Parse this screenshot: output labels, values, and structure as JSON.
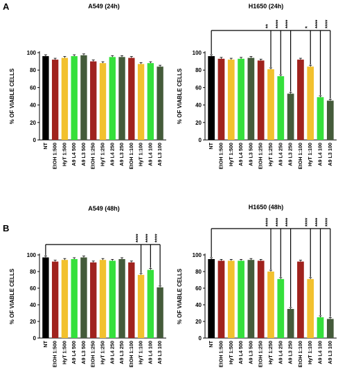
{
  "panel_labels": [
    "A",
    "B"
  ],
  "colors": {
    "NT": "#000000",
    "EtOH": "#a0231e",
    "HyT": "#f2c12e",
    "A9 L4": "#35e03c",
    "A9 L3": "#445b3a"
  },
  "chart_data": [
    {
      "type": "bar",
      "title": "A549 (24h)",
      "ylabel": "% OF VIABLE CELLS",
      "ylim": [
        0,
        100
      ],
      "yticks": [
        0,
        20,
        40,
        60,
        80,
        100
      ],
      "categories": [
        "NT",
        "EtOH 1:500",
        "HyT 1:500",
        "A9 L4 500",
        "A9 L3 500",
        "EtOH 1:250",
        "HyT 1:250",
        "A9 L4 250",
        "A9 L3 250",
        "EtOH 1:100",
        "HyT 1:100",
        "A9 L4 100",
        "A9 L3 100"
      ],
      "values": [
        96,
        92,
        94,
        96,
        97,
        90,
        88,
        95,
        95,
        94,
        87,
        88,
        84
      ],
      "significance": []
    },
    {
      "type": "bar",
      "title": "H1650 (24h)",
      "ylabel": "% OF VIABLE CELLS",
      "ylim": [
        0,
        100
      ],
      "yticks": [
        0,
        20,
        40,
        60,
        80,
        100
      ],
      "categories": [
        "NT",
        "EtOH 1:500",
        "HyT 1:500",
        "A9 L4 500",
        "A9 L3 500",
        "EtOH 1:250",
        "HyT 1:250",
        "A9 L4 250",
        "A9 L3 250",
        "EtOH 1:100",
        "HyT 1:100",
        "A9 L4 100",
        "A9 L3 100"
      ],
      "values": [
        96,
        93,
        92,
        93,
        94,
        91,
        81,
        73,
        53,
        92,
        84,
        49,
        45
      ],
      "significance": [
        "",
        "",
        "",
        "",
        "",
        "",
        "**",
        "****",
        "****",
        "",
        "*",
        "****",
        "****"
      ]
    },
    {
      "type": "bar",
      "title": "A549 (48h)",
      "ylabel": "% OF VIABLE CELLS",
      "ylim": [
        0,
        100
      ],
      "yticks": [
        0,
        20,
        40,
        60,
        80,
        100
      ],
      "categories": [
        "NT",
        "EtOH 1:500",
        "HyT 1:500",
        "A9 L4 500",
        "A9 L3 500",
        "EtOH 1:250",
        "HyT 1:250",
        "A9 L4 250",
        "A9 L3 250",
        "EtOH 1:100",
        "HyT 1:100",
        "A9 L4 100",
        "A9 L3 100"
      ],
      "values": [
        97,
        92,
        94,
        95,
        97,
        91,
        94,
        93,
        95,
        91,
        76,
        82,
        61
      ],
      "significance": [
        "",
        "",
        "",
        "",
        "",
        "",
        "",
        "",
        "",
        "",
        "****",
        "****",
        "****"
      ]
    },
    {
      "type": "bar",
      "title": "H1650 (48h)",
      "ylabel": "% OF VIABLE CELLS",
      "ylim": [
        0,
        100
      ],
      "yticks": [
        0,
        20,
        40,
        60,
        80,
        100
      ],
      "categories": [
        "NT",
        "EtOH 1:500",
        "HyT 1:500",
        "A9 L4 500",
        "A9 L3 500",
        "EtOH 1:250",
        "HyT 1:250",
        "A9 L4 250",
        "A9 L3 250",
        "EtOH 1:100",
        "HyT 1:100",
        "A9 L4 100",
        "A9 L3 100"
      ],
      "values": [
        95,
        93,
        93,
        93,
        94,
        93,
        80,
        71,
        35,
        92,
        71,
        25,
        23
      ],
      "significance": [
        "",
        "",
        "",
        "",
        "",
        "",
        "****",
        "****",
        "****",
        "",
        "****",
        "****",
        "****"
      ]
    }
  ]
}
